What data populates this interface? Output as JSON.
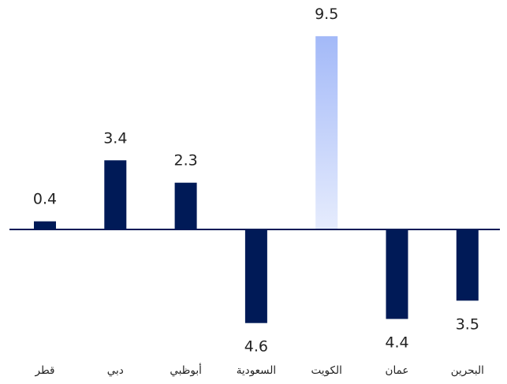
{
  "colors": {
    "bar_default": "#001a57",
    "highlight_top": "#a3b9f8",
    "highlight_bottom": "#e6ecfd",
    "baseline": "#001a57",
    "text": "#222222"
  },
  "chart_data": {
    "type": "bar",
    "categories": [
      "قطر",
      "دبي",
      "أبوظبي",
      "السعودية",
      "الكويت",
      "عمان",
      "البحرين"
    ],
    "values": [
      0.4,
      3.4,
      2.3,
      -4.6,
      9.5,
      -4.4,
      -3.5
    ],
    "value_labels": [
      "0.4",
      "3.4",
      "2.3",
      "4.6",
      "9.5",
      "4.4",
      "3.5"
    ],
    "highlight_index": 4,
    "ylim": [
      -6.5,
      10.5
    ],
    "grid": false,
    "legend": "none"
  }
}
